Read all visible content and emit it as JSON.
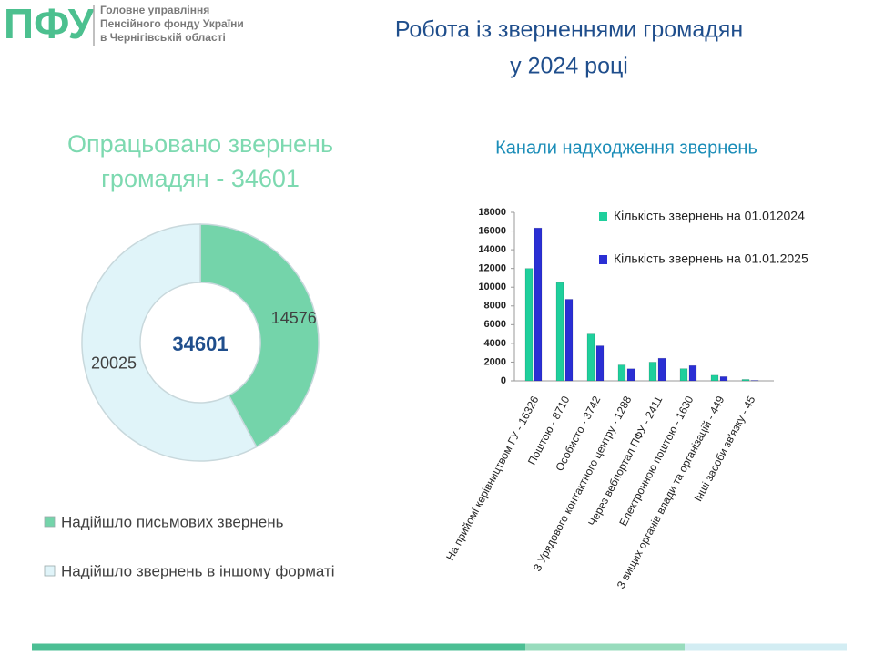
{
  "header": {
    "logo": "ПФУ",
    "org": [
      "Головне управління",
      "Пенсійного фонду України",
      "в Чернігівській області"
    ],
    "title": [
      "Робота із зверненнями громадян",
      "у 2024 році"
    ]
  },
  "chart_data": [
    {
      "type": "pie",
      "title": [
        "Опрацьовано звернень",
        "громадян - 34601"
      ],
      "center_label": "34601",
      "categories": [
        "Надійшло письмових звернень",
        "Надійшло звернень в іншому форматі"
      ],
      "values": [
        14576,
        20025
      ],
      "colors": [
        "#74d4aa",
        "#e0f4f9"
      ]
    },
    {
      "type": "bar",
      "title": "Канали надходження звернень",
      "categories": [
        "На прийомі керівництвом ГУ - 16326",
        "Поштою - 8710",
        "Особисто - 3742",
        "З Урядового контактного центру - 1288",
        "Через вебпортал ПФУ - 2411",
        "Електронною поштою - 1630",
        "З вищих органів влади та організацій - 449",
        "Інші засоби зв'язку - 45"
      ],
      "series": [
        {
          "name": "Кількість звернень на 01.012024",
          "color": "#1fcf9c",
          "values": [
            12000,
            10500,
            5000,
            1700,
            2000,
            1300,
            600,
            150
          ]
        },
        {
          "name": "Кількість звернень на 01.01.2025",
          "color": "#2a2fd4",
          "values": [
            16326,
            8710,
            3742,
            1288,
            2411,
            1630,
            449,
            45
          ]
        }
      ],
      "ylim": [
        0,
        18000
      ],
      "yticks": [
        0,
        2000,
        4000,
        6000,
        8000,
        10000,
        12000,
        14000,
        16000,
        18000
      ]
    }
  ]
}
